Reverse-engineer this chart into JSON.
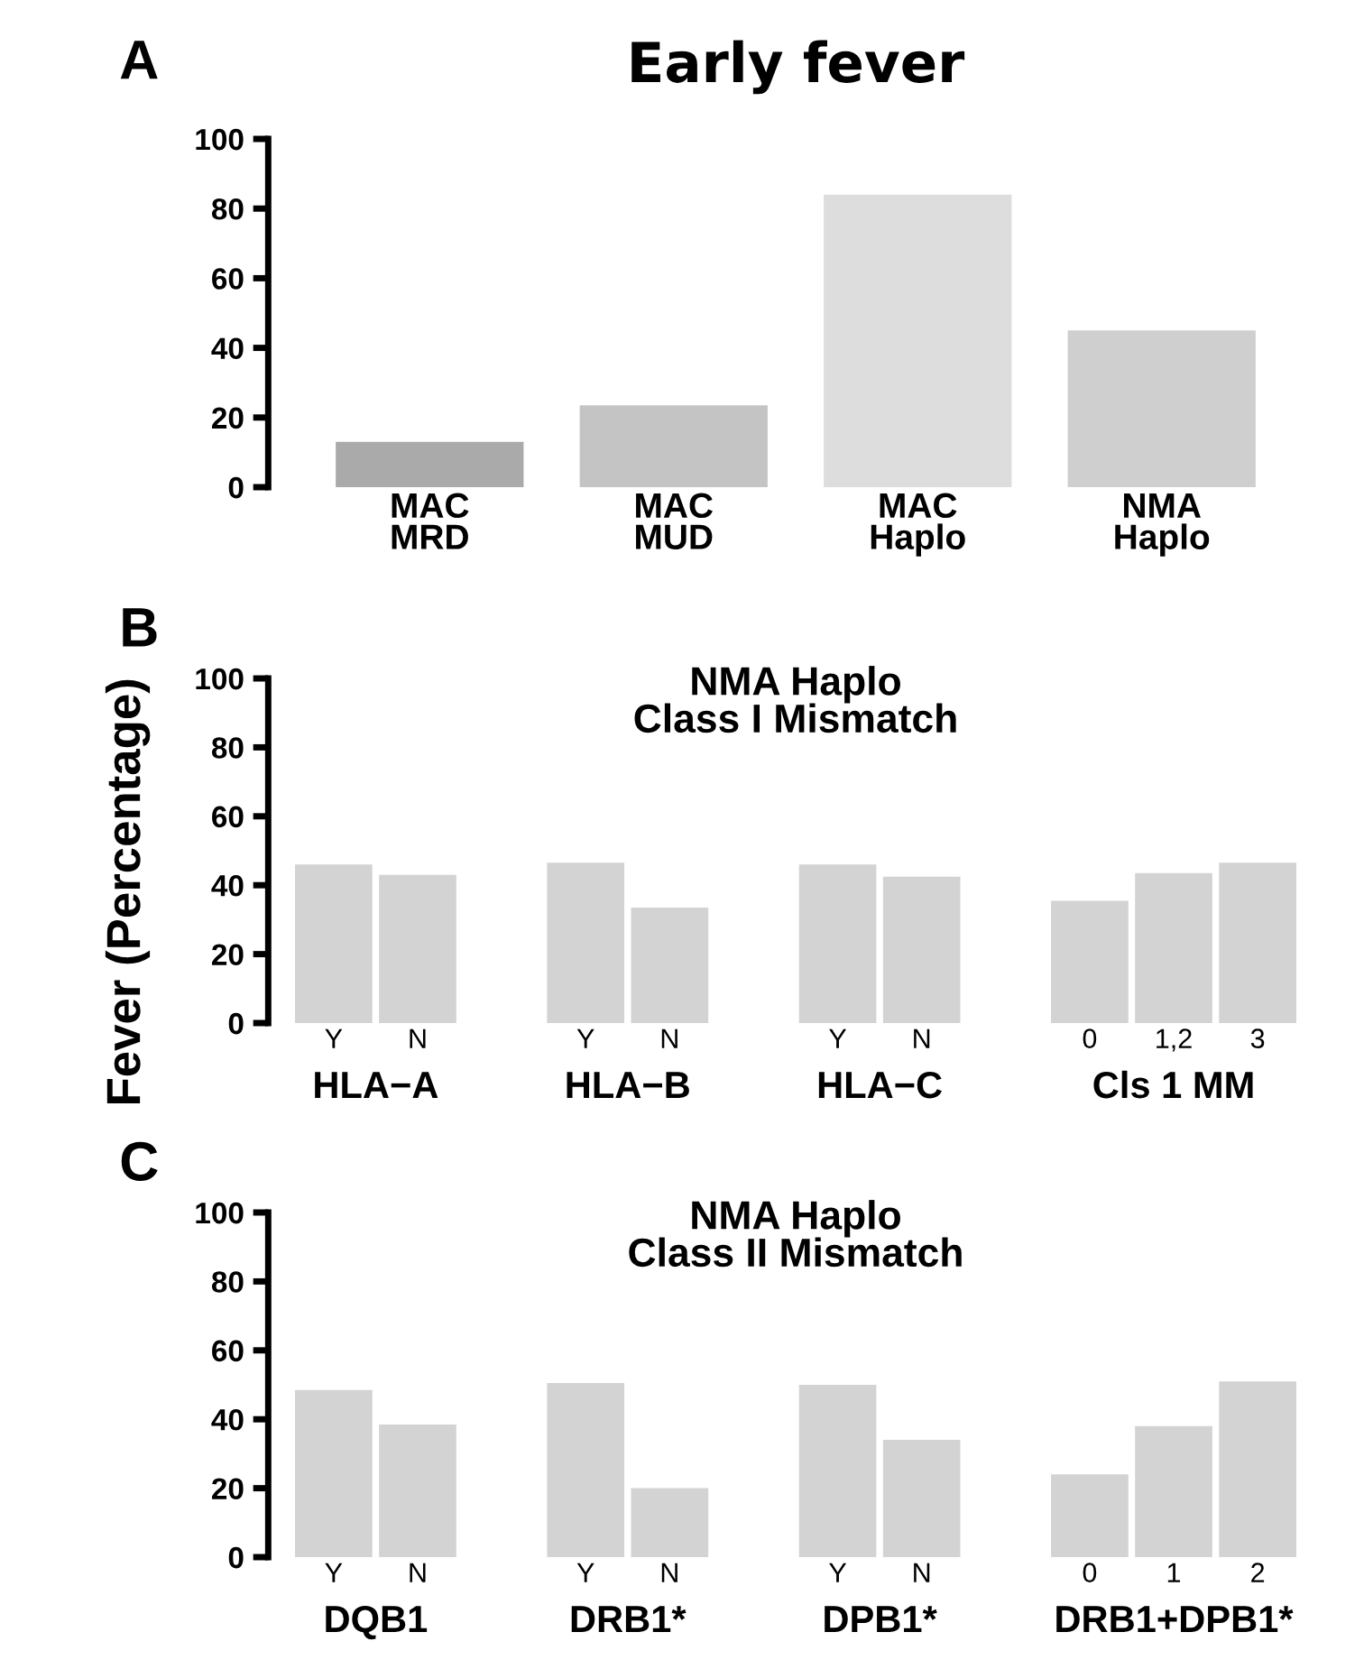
{
  "chart_data": [
    {
      "type": "bar",
      "title": "Early fever",
      "categories": [
        "MAC\nMRD",
        "MAC\nMUD",
        "MAC\nHaplo",
        "NMA\nHaplo"
      ],
      "values": [
        13,
        23.5,
        84,
        45
      ],
      "colors": [
        "#aaaaaa",
        "#c4c4c4",
        "#dddddd",
        "#cfcfcf"
      ],
      "ylim": [
        0,
        100
      ],
      "yticks": [
        0,
        20,
        40,
        60,
        80,
        100
      ],
      "grid": false,
      "annotations": [
        "A"
      ]
    },
    {
      "type": "bar",
      "title": "NMA Haplo\nClass I Mismatch",
      "ylabel": "Fever (Percentage)",
      "categories": [
        "Y",
        "N",
        null,
        "Y",
        "N",
        null,
        "Y",
        "N",
        null,
        "0",
        "1,2",
        "3"
      ],
      "values": [
        46,
        43,
        null,
        46.5,
        33.5,
        null,
        46,
        42.5,
        null,
        35.5,
        43.5,
        46.5
      ],
      "color": "#d3d3d3",
      "ylim": [
        0,
        100
      ],
      "yticks": [
        0,
        20,
        40,
        60,
        80,
        100
      ],
      "grid": false,
      "annotations": [
        "B",
        "HLA−A",
        "HLA−B",
        "HLA−C",
        "Cls 1 MM"
      ]
    },
    {
      "type": "bar",
      "title": "NMA Haplo\nClass II Mismatch",
      "categories": [
        "Y",
        "N",
        null,
        "Y",
        "N",
        null,
        "Y",
        "N",
        null,
        "0",
        "1",
        "2"
      ],
      "values": [
        48.5,
        38.5,
        null,
        50.5,
        20,
        null,
        50,
        34,
        null,
        24,
        38,
        51
      ],
      "color": "#d3d3d3",
      "ylim": [
        0,
        100
      ],
      "yticks": [
        0,
        20,
        40,
        60,
        80,
        100
      ],
      "grid": false,
      "annotations": [
        "C",
        "DQB1",
        "DRB1*",
        "DPB1*",
        "DRB1+DPB1*"
      ]
    }
  ]
}
